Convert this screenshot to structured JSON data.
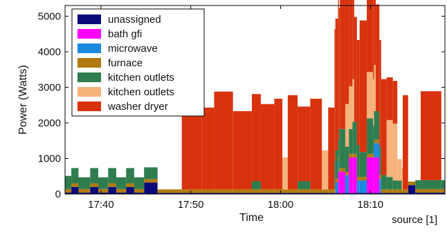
{
  "chart_data": {
    "type": "area",
    "stacked": true,
    "xlabel": "Time",
    "ylabel": "Power (Watts)",
    "x_ticks": [
      "17:40",
      "17:50",
      "18:00",
      "18:10"
    ],
    "x_tick_minutes": [
      0,
      10,
      20,
      30
    ],
    "xlim_minutes": [
      -4,
      38.3
    ],
    "ylim": [
      0,
      5300
    ],
    "y_ticks": [
      0,
      1000,
      2000,
      3000,
      4000,
      5000
    ],
    "legend_position": "top-left",
    "grid": false,
    "series": [
      {
        "name": "unassigned",
        "color": "#0a0a7a",
        "segments": [
          [
            -4,
            -3.3,
            40
          ],
          [
            -3.3,
            -2.5,
            200
          ],
          [
            -2.5,
            -1.2,
            40
          ],
          [
            -1.2,
            -0.3,
            200
          ],
          [
            -0.3,
            0.8,
            40
          ],
          [
            0.8,
            1.7,
            200
          ],
          [
            1.7,
            2.8,
            40
          ],
          [
            2.8,
            3.7,
            200
          ],
          [
            3.7,
            4.8,
            40
          ],
          [
            4.8,
            6.3,
            320
          ],
          [
            6.3,
            34.2,
            30
          ],
          [
            34.2,
            35,
            250
          ],
          [
            35,
            38.3,
            40
          ]
        ]
      },
      {
        "name": "bath gfi",
        "color": "#ff00ff",
        "segments": [
          [
            26.4,
            27.2,
            600
          ],
          [
            27.6,
            28.5,
            1000
          ],
          [
            29.6,
            31.0,
            1000
          ]
        ]
      },
      {
        "name": "microwave",
        "color": "#1a8ae0",
        "segments": [
          [
            26.1,
            26.5,
            300
          ],
          [
            27.2,
            27.6,
            500
          ],
          [
            28.5,
            29.6,
            350
          ],
          [
            30.4,
            31.2,
            400
          ]
        ]
      },
      {
        "name": "furnace",
        "color": "#b07a10",
        "segments": [
          [
            -4,
            38.3,
            100
          ]
        ]
      },
      {
        "name": "kitchen outlets",
        "color": "#2e7d4f",
        "segments": [
          [
            -4,
            -3.3,
            370
          ],
          [
            -3.3,
            -2.5,
            430
          ],
          [
            -2.5,
            -1.2,
            330
          ],
          [
            -1.2,
            -0.3,
            430
          ],
          [
            -0.3,
            0.8,
            330
          ],
          [
            0.8,
            1.7,
            430
          ],
          [
            1.7,
            2.8,
            330
          ],
          [
            2.8,
            3.7,
            430
          ],
          [
            3.7,
            4.8,
            330
          ],
          [
            4.8,
            6.3,
            330
          ],
          [
            16.8,
            17.8,
            230
          ],
          [
            21.9,
            23.3,
            230
          ],
          [
            26.0,
            26.6,
            800
          ],
          [
            26.6,
            27.2,
            1100
          ],
          [
            27.2,
            28.0,
            700
          ],
          [
            28.0,
            28.8,
            900
          ],
          [
            28.8,
            29.6,
            700
          ],
          [
            29.6,
            30.3,
            1000
          ],
          [
            30.3,
            31.2,
            800
          ],
          [
            31.2,
            31.8,
            400
          ],
          [
            31.8,
            32.5,
            350
          ],
          [
            32.5,
            33.5,
            250
          ],
          [
            35.0,
            38.3,
            250
          ]
        ]
      },
      {
        "name": "kitchen outlets",
        "color": "#f6b27a",
        "segments": [
          [
            20.2,
            20.8,
            900
          ],
          [
            24.6,
            25.3,
            1100
          ],
          [
            27.2,
            28.2,
            1200
          ],
          [
            29.6,
            30.6,
            1300
          ],
          [
            31.8,
            33.0,
            1600
          ],
          [
            33.0,
            33.6,
            600
          ]
        ]
      },
      {
        "name": "washer dryer",
        "color": "#d8330e",
        "segments": [
          [
            9.0,
            11.2,
            2600
          ],
          [
            11.2,
            12.6,
            2300
          ],
          [
            12.6,
            14.7,
            2750
          ],
          [
            14.7,
            16.8,
            2200
          ],
          [
            16.8,
            17.8,
            2450
          ],
          [
            17.8,
            19.3,
            2400
          ],
          [
            19.3,
            20.2,
            2550
          ],
          [
            20.8,
            21.9,
            2650
          ],
          [
            21.9,
            23.3,
            2100
          ],
          [
            23.3,
            24.6,
            2550
          ],
          [
            25.3,
            26.0,
            2300
          ],
          [
            26.0,
            26.6,
            3700
          ],
          [
            26.6,
            27.2,
            4100
          ],
          [
            27.2,
            28.2,
            3500
          ],
          [
            28.2,
            28.8,
            2950
          ],
          [
            28.8,
            29.6,
            3700
          ],
          [
            29.6,
            30.6,
            3600
          ],
          [
            30.6,
            31.2,
            3000
          ],
          [
            31.2,
            31.8,
            2700
          ],
          [
            31.8,
            33.0,
            1200
          ],
          [
            33.6,
            34.2,
            2650
          ],
          [
            35.6,
            37.9,
            2500
          ]
        ]
      }
    ]
  },
  "source_note": "source [1]"
}
